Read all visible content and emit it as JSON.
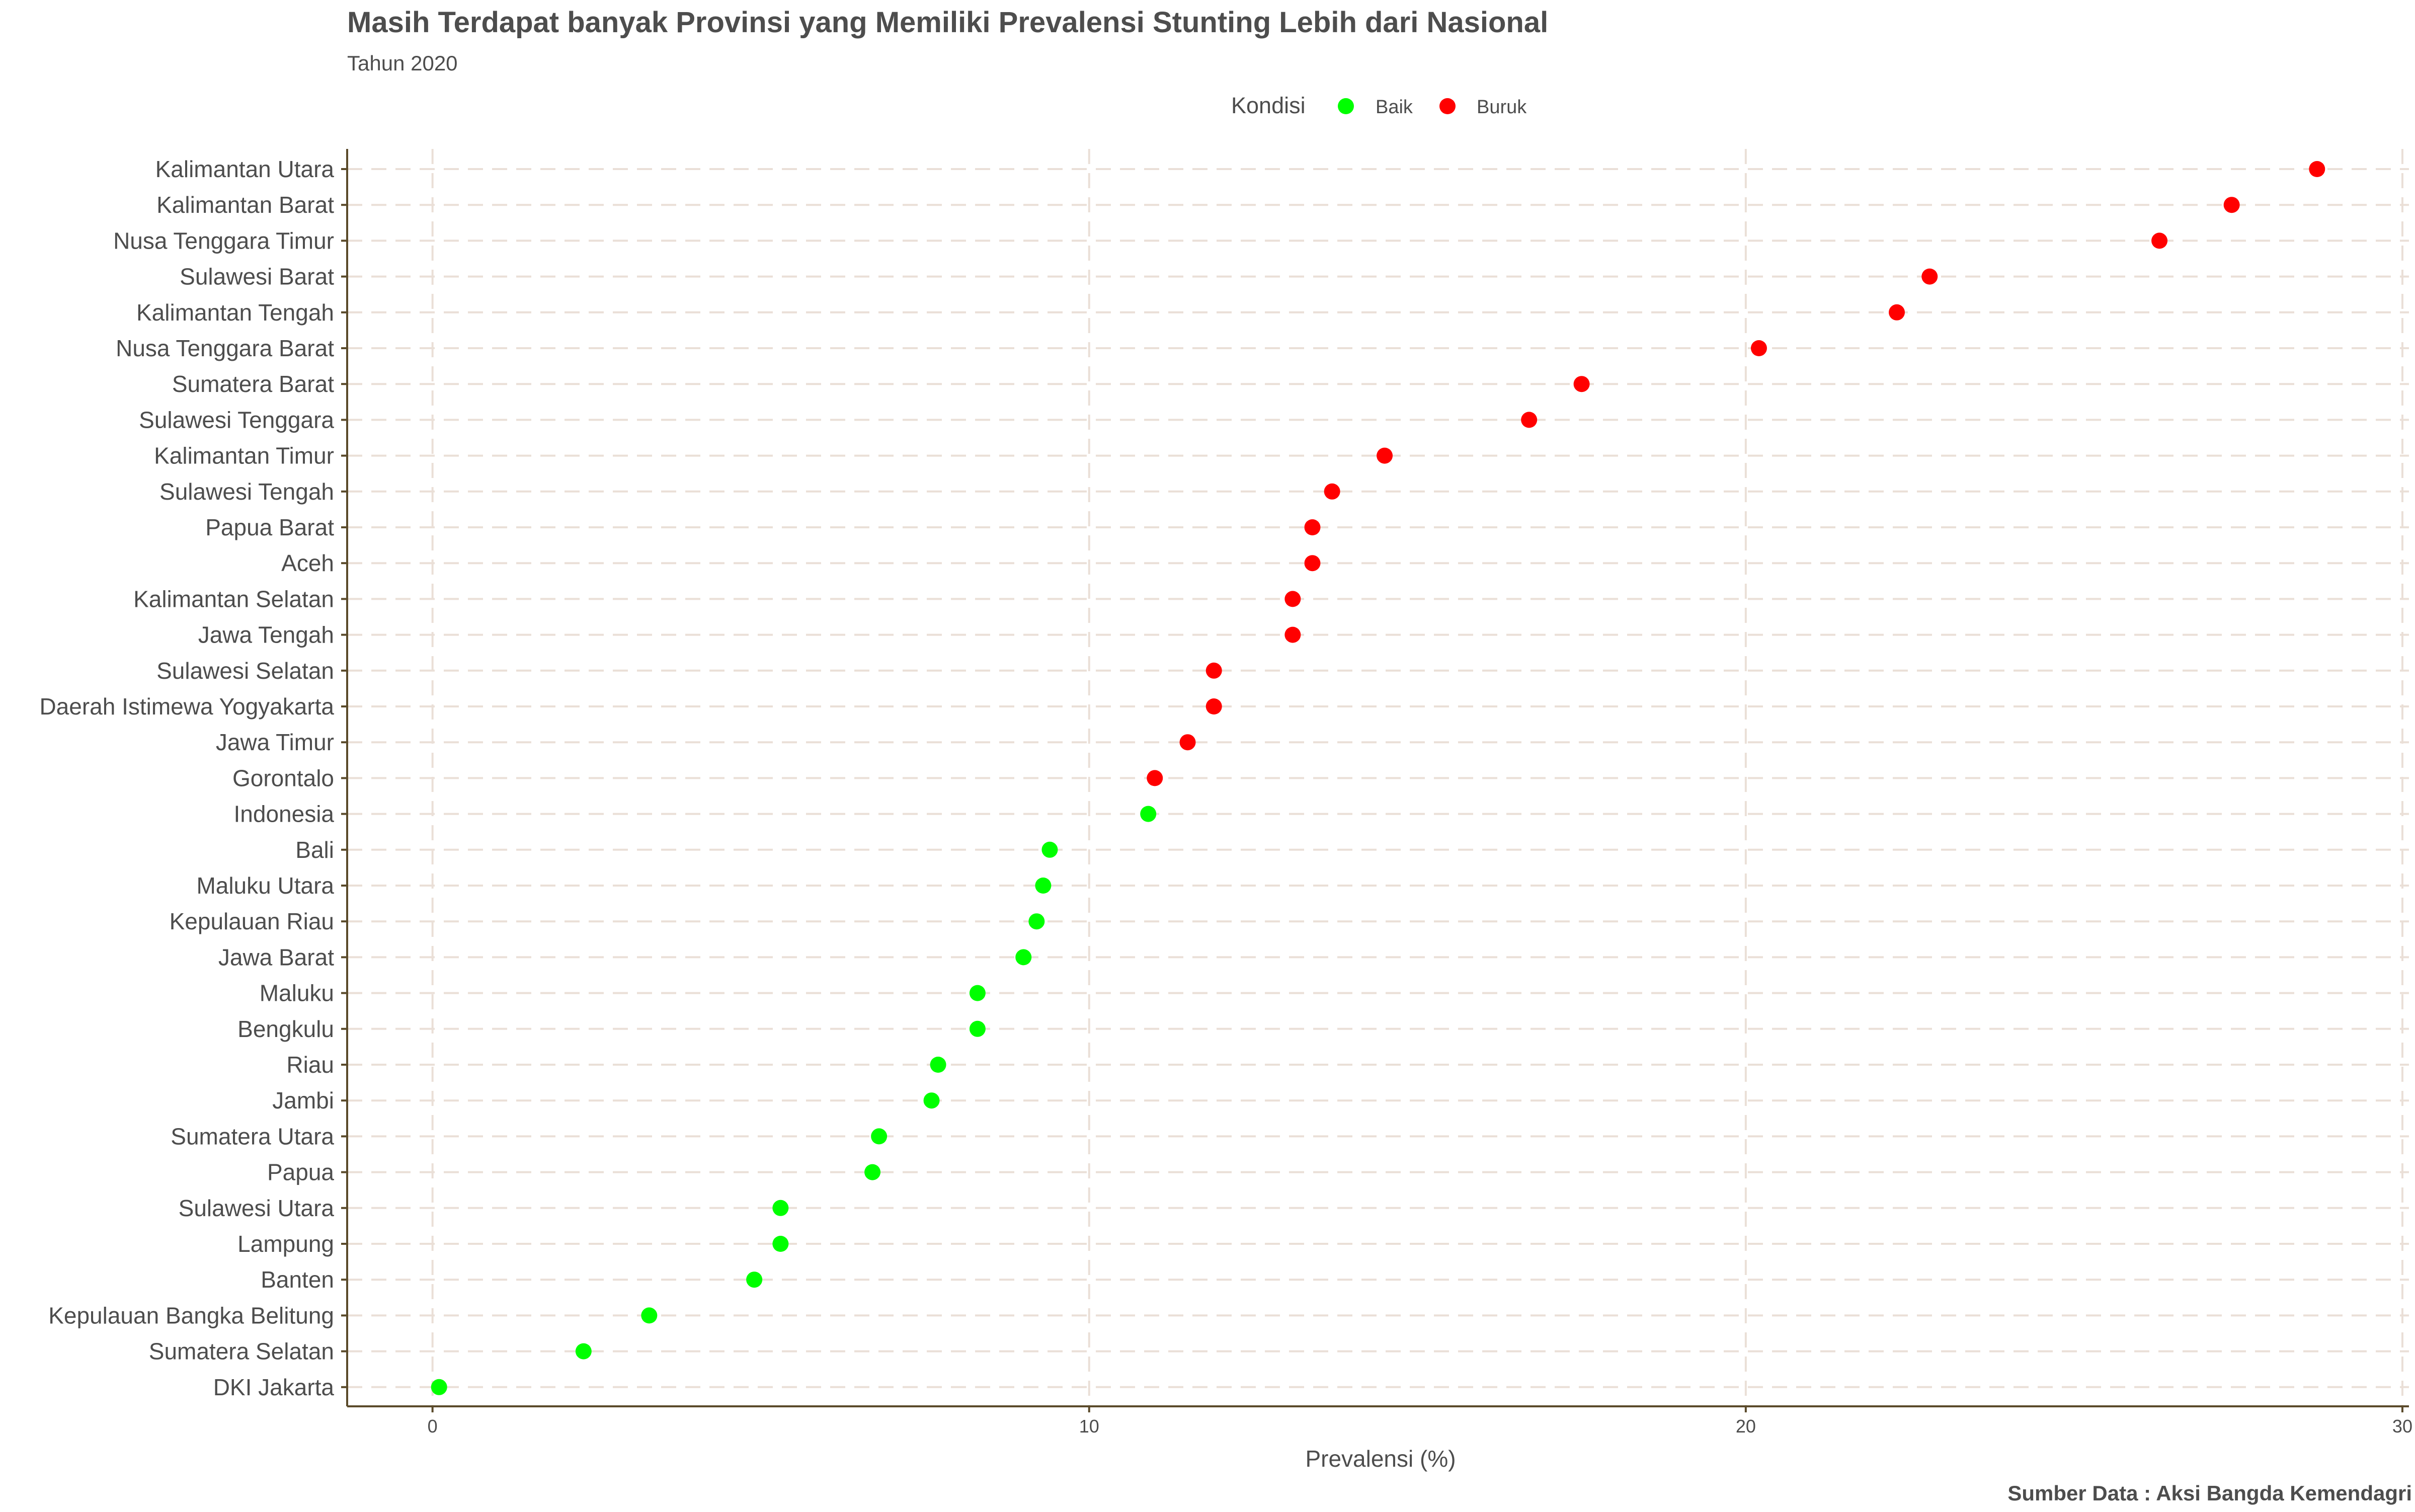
{
  "chart_data": {
    "type": "scatter",
    "title": "Masih Terdapat banyak Provinsi yang Memiliki Prevalensi Stunting Lebih dari Nasional",
    "subtitle": "Tahun 2020",
    "xlabel": "Prevalensi (%)",
    "ylabel": "",
    "xlim": [
      -1.3,
      30.1
    ],
    "xticks": [
      0,
      10,
      20,
      30
    ],
    "grid": true,
    "legend": {
      "title": "Kondisi",
      "position": "top",
      "entries": [
        {
          "label": "Baik",
          "color": "#00ff00"
        },
        {
          "label": "Buruk",
          "color": "#ff0000"
        }
      ]
    },
    "highlight_label": {
      "name": "Indonesia",
      "color": "#0000ff"
    },
    "caption": "Sumber Data : Aksi Bangda Kemendagri",
    "points": [
      {
        "province": "Kalimantan Utara",
        "value": 28.7,
        "kondisi": "Buruk"
      },
      {
        "province": "Kalimantan Barat",
        "value": 27.4,
        "kondisi": "Buruk"
      },
      {
        "province": "Nusa Tenggara Timur",
        "value": 26.3,
        "kondisi": "Buruk"
      },
      {
        "province": "Sulawesi Barat",
        "value": 22.8,
        "kondisi": "Buruk"
      },
      {
        "province": "Kalimantan Tengah",
        "value": 22.3,
        "kondisi": "Buruk"
      },
      {
        "province": "Nusa Tenggara Barat",
        "value": 20.2,
        "kondisi": "Buruk"
      },
      {
        "province": "Sumatera Barat",
        "value": 17.5,
        "kondisi": "Buruk"
      },
      {
        "province": "Sulawesi Tenggara",
        "value": 16.7,
        "kondisi": "Buruk"
      },
      {
        "province": "Kalimantan Timur",
        "value": 14.5,
        "kondisi": "Buruk"
      },
      {
        "province": "Sulawesi Tengah",
        "value": 13.7,
        "kondisi": "Buruk"
      },
      {
        "province": "Papua Barat",
        "value": 13.4,
        "kondisi": "Buruk"
      },
      {
        "province": "Aceh",
        "value": 13.4,
        "kondisi": "Buruk"
      },
      {
        "province": "Kalimantan Selatan",
        "value": 13.1,
        "kondisi": "Buruk"
      },
      {
        "province": "Jawa Tengah",
        "value": 13.1,
        "kondisi": "Buruk"
      },
      {
        "province": "Sulawesi Selatan",
        "value": 11.9,
        "kondisi": "Buruk"
      },
      {
        "province": "Daerah Istimewa Yogyakarta",
        "value": 11.9,
        "kondisi": "Buruk"
      },
      {
        "province": "Jawa Timur",
        "value": 11.5,
        "kondisi": "Buruk"
      },
      {
        "province": "Gorontalo",
        "value": 11.0,
        "kondisi": "Buruk"
      },
      {
        "province": "Indonesia",
        "value": 10.9,
        "kondisi": "Baik"
      },
      {
        "province": "Bali",
        "value": 9.4,
        "kondisi": "Baik"
      },
      {
        "province": "Maluku Utara",
        "value": 9.3,
        "kondisi": "Baik"
      },
      {
        "province": "Kepulauan Riau",
        "value": 9.2,
        "kondisi": "Baik"
      },
      {
        "province": "Jawa Barat",
        "value": 9.0,
        "kondisi": "Baik"
      },
      {
        "province": "Maluku",
        "value": 8.3,
        "kondisi": "Baik"
      },
      {
        "province": "Bengkulu",
        "value": 8.3,
        "kondisi": "Baik"
      },
      {
        "province": "Riau",
        "value": 7.7,
        "kondisi": "Baik"
      },
      {
        "province": "Jambi",
        "value": 7.6,
        "kondisi": "Baik"
      },
      {
        "province": "Sumatera Utara",
        "value": 6.8,
        "kondisi": "Baik"
      },
      {
        "province": "Papua",
        "value": 6.7,
        "kondisi": "Baik"
      },
      {
        "province": "Sulawesi Utara",
        "value": 5.3,
        "kondisi": "Baik"
      },
      {
        "province": "Lampung",
        "value": 5.3,
        "kondisi": "Baik"
      },
      {
        "province": "Banten",
        "value": 4.9,
        "kondisi": "Baik"
      },
      {
        "province": "Kepulauan Bangka Belitung",
        "value": 3.3,
        "kondisi": "Baik"
      },
      {
        "province": "Sumatera Selatan",
        "value": 2.3,
        "kondisi": "Baik"
      },
      {
        "province": "DKI Jakarta",
        "value": 0.1,
        "kondisi": "Baik"
      }
    ]
  }
}
